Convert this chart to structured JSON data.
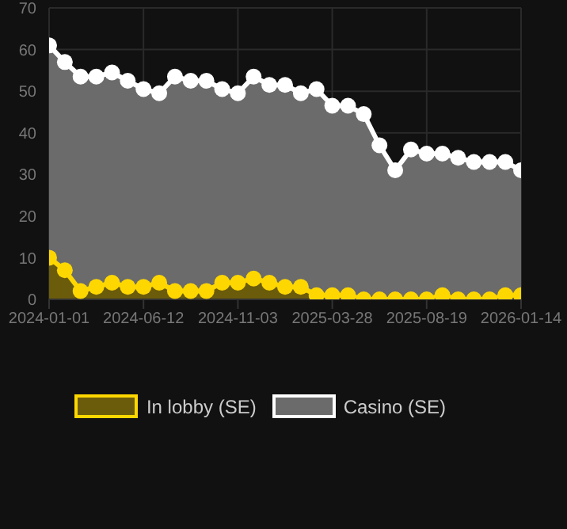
{
  "chart_data": {
    "type": "area",
    "categories": [
      "2024-01-01",
      null,
      null,
      null,
      null,
      null,
      "2024-06-12",
      null,
      null,
      null,
      null,
      null,
      "2024-11-03",
      null,
      null,
      null,
      null,
      null,
      "2025-03-28",
      null,
      null,
      null,
      null,
      null,
      "2025-08-19",
      null,
      null,
      null,
      null,
      null,
      "2026-01-14"
    ],
    "series": [
      {
        "name": "Casino (SE)",
        "color": "#ffffff",
        "values": [
          61,
          57,
          53.5,
          53.5,
          54.5,
          52.5,
          50.5,
          49.5,
          53.5,
          52.5,
          52.5,
          50.5,
          49.5,
          53.5,
          51.5,
          51.5,
          49.5,
          50.5,
          46.5,
          46.5,
          44.5,
          37,
          31,
          36,
          35,
          35,
          34,
          33,
          33,
          33,
          31
        ]
      },
      {
        "name": "In lobby (SE)",
        "color": "#ffd700",
        "values": [
          10,
          7,
          2,
          3,
          4,
          3,
          3,
          4,
          2,
          2,
          2,
          4,
          4,
          5,
          4,
          3,
          3,
          1,
          1,
          1,
          0,
          0,
          0,
          0,
          0,
          1,
          0,
          0,
          0,
          1,
          1
        ]
      }
    ],
    "ylim": [
      0,
      70
    ],
    "yticks": [
      0,
      10,
      20,
      30,
      40,
      50,
      60,
      70
    ],
    "grid": true,
    "legend": "bottom",
    "marker": "circle"
  }
}
